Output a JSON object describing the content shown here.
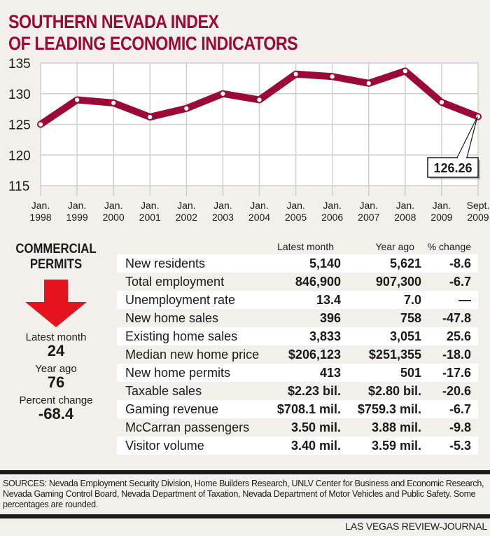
{
  "header": {
    "title_line1": "SOUTHERN NEVADA INDEX",
    "title_line2": "OF LEADING ECONOMIC INDICATORS"
  },
  "colors": {
    "accent": "#9b0a36",
    "arrow": "#e3141d",
    "background": "#f3f0eb",
    "grid": "#cfcfcf"
  },
  "chart_data": {
    "type": "line",
    "title": "Southern Nevada Index of Leading Economic Indicators",
    "xlabel": "",
    "ylabel": "",
    "ylim": [
      115,
      135
    ],
    "yticks": [
      135,
      130,
      125,
      120,
      115
    ],
    "grid": true,
    "categories": [
      [
        "Jan.",
        "1998"
      ],
      [
        "Jan.",
        "1999"
      ],
      [
        "Jan.",
        "2000"
      ],
      [
        "Jan.",
        "2001"
      ],
      [
        "Jan.",
        "2002"
      ],
      [
        "Jan.",
        "2003"
      ],
      [
        "Jan.",
        "2004"
      ],
      [
        "Jan.",
        "2005"
      ],
      [
        "Jan.",
        "2006"
      ],
      [
        "Jan.",
        "2007"
      ],
      [
        "Jan.",
        "2008"
      ],
      [
        "Jan.",
        "2009"
      ],
      [
        "Sept.",
        "2009"
      ]
    ],
    "series": [
      {
        "name": "Index",
        "values": [
          125.0,
          129.0,
          128.5,
          126.2,
          127.6,
          130.0,
          129.0,
          133.2,
          132.8,
          131.7,
          133.7,
          128.6,
          126.26
        ]
      }
    ],
    "annotation": {
      "label": "126.26",
      "point_index": 12
    }
  },
  "commercial_permits": {
    "title_line1": "COMMERCIAL",
    "title_line2": "PERMITS",
    "trend_icon": "down-arrow",
    "latest_label": "Latest month",
    "latest_value": "24",
    "yearago_label": "Year ago",
    "yearago_value": "76",
    "change_label": "Percent change",
    "change_value": "-68.4"
  },
  "table": {
    "headers": [
      "",
      "Latest month",
      "Year ago",
      "% change"
    ],
    "rows": [
      {
        "name": "New residents",
        "latest": "5,140",
        "year_ago": "5,621",
        "change": "-8.6"
      },
      {
        "name": "Total employment",
        "latest": "846,900",
        "year_ago": "907,300",
        "change": "-6.7"
      },
      {
        "name": "Unemployment rate",
        "latest": "13.4",
        "year_ago": "7.0",
        "change": "—"
      },
      {
        "name": "New home sales",
        "latest": "396",
        "year_ago": "758",
        "change": "-47.8"
      },
      {
        "name": "Existing home sales",
        "latest": "3,833",
        "year_ago": "3,051",
        "change": "25.6"
      },
      {
        "name": "Median new home price",
        "latest": "$206,123",
        "year_ago": "$251,355",
        "change": "-18.0"
      },
      {
        "name": "New home permits",
        "latest": "413",
        "year_ago": "501",
        "change": "-17.6"
      },
      {
        "name": "Taxable sales",
        "latest": "$2.23 bil.",
        "year_ago": "$2.80 bil.",
        "change": "-20.6"
      },
      {
        "name": "Gaming revenue",
        "latest": "$708.1 mil.",
        "year_ago": "$759.3 mil.",
        "change": "-6.7"
      },
      {
        "name": "McCarran passengers",
        "latest": "3.50 mil.",
        "year_ago": "3.88 mil.",
        "change": "-9.8"
      },
      {
        "name": "Visitor volume",
        "latest": "3.40 mil.",
        "year_ago": "3.59 mil.",
        "change": "-5.3"
      }
    ]
  },
  "footer": {
    "sources": "SOURCES: Nevada Employment Security Division, Home Builders Research, UNLV Center for Business and Economic Research, Nevada Gaming Control Board, Nevada Department of Taxation, Nevada Department of Motor Vehicles and Public Safety. Some percentages are rounded.",
    "credit": "LAS VEGAS REVIEW-JOURNAL"
  }
}
